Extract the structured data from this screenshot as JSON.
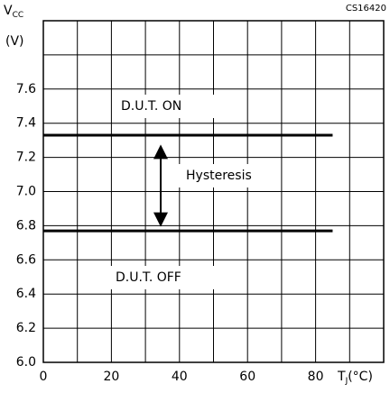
{
  "chart_data": {
    "type": "line",
    "code": "CS16420",
    "ylabel": {
      "symbol": "V",
      "subscript": "CC",
      "unit": "(V)"
    },
    "xlabel": {
      "symbol": "T",
      "subscript": "J",
      "unit": "(°C)"
    },
    "annotations": [
      "D.U.T.  ON",
      "Hysteresis",
      "D.U.T.  OFF"
    ],
    "series": [
      {
        "color": "#000000",
        "x": [
          0,
          85
        ],
        "values": [
          7.33,
          7.33
        ]
      },
      {
        "color": "#000000",
        "x": [
          0,
          85
        ],
        "values": [
          6.77,
          6.77
        ]
      }
    ],
    "xlim": [
      0,
      100
    ],
    "ylim": [
      6.0,
      8.0
    ],
    "xticks": [
      0,
      {
        "value": 10,
        "label": null
      },
      20,
      {
        "value": 30,
        "label": null
      },
      40,
      {
        "value": 50,
        "label": null
      },
      60,
      {
        "value": 70,
        "label": null
      },
      80,
      {
        "value": 90,
        "label": null
      }
    ],
    "yticks": [
      {
        "value": 6,
        "label": "6.0"
      },
      {
        "value": 6.2,
        "label": "6.2"
      },
      {
        "value": 6.4,
        "label": "6.4"
      },
      {
        "value": 6.6,
        "label": "6.6"
      },
      {
        "value": 6.8,
        "label": "6.8"
      },
      {
        "value": 7,
        "label": "7.0"
      },
      {
        "value": 7.2,
        "label": "7.2"
      },
      {
        "value": 7.4,
        "label": "7.4"
      },
      {
        "value": 7.6,
        "label": "7.6"
      },
      {
        "value": 7.8,
        "label": null
      }
    ],
    "grid": true
  }
}
